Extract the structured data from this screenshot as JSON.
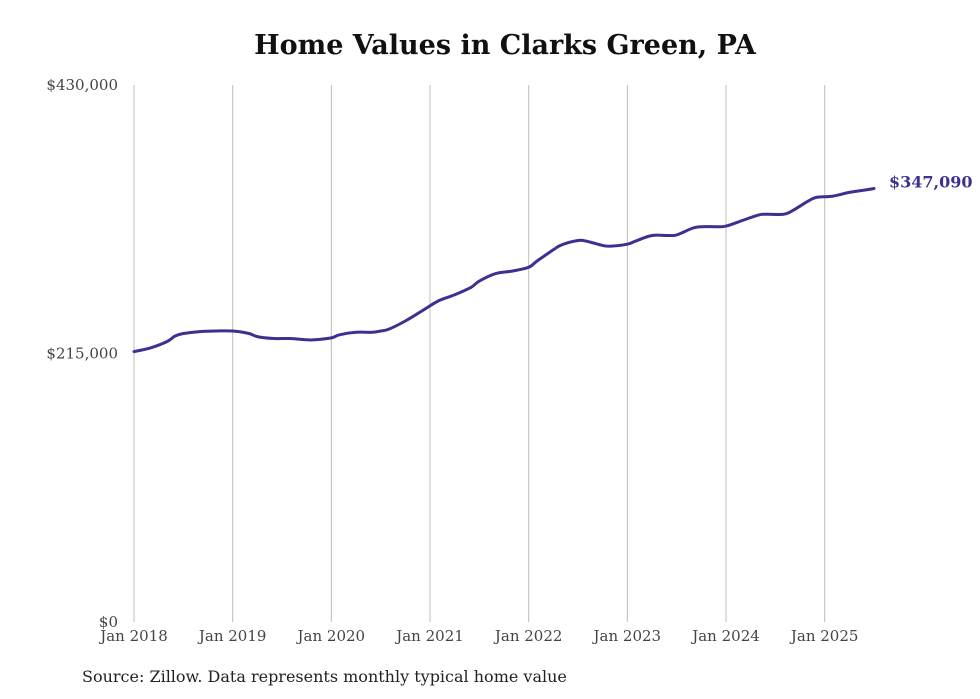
{
  "chart_data": {
    "type": "line",
    "title": "Home Values in Clarks Green, PA",
    "source": "Source: Zillow. Data represents monthly typical home value",
    "ylim": [
      0,
      430000
    ],
    "y_ticks": [
      "$0",
      "$215,000",
      "$430,000"
    ],
    "y_tick_values": [
      0,
      215000,
      430000
    ],
    "x_ticks": [
      "Jan 2018",
      "Jan 2019",
      "Jan 2020",
      "Jan 2021",
      "Jan 2022",
      "Jan 2023",
      "Jan 2024",
      "Jan 2025"
    ],
    "x_range": [
      "2018-01",
      "2025-07"
    ],
    "grid": "vertical",
    "series_color": "#3b3190",
    "end_label": "$347,090",
    "series": [
      {
        "values": [
          [
            "2018-01",
            216500
          ],
          [
            "2018-03",
            219500
          ],
          [
            "2018-05",
            224500
          ],
          [
            "2018-06",
            229000
          ],
          [
            "2018-07",
            231000
          ],
          [
            "2018-09",
            232500
          ],
          [
            "2018-11",
            233000
          ],
          [
            "2019-01",
            233000
          ],
          [
            "2019-03",
            231000
          ],
          [
            "2019-04",
            228500
          ],
          [
            "2019-06",
            227000
          ],
          [
            "2019-08",
            227000
          ],
          [
            "2019-10",
            226000
          ],
          [
            "2019-11",
            226000
          ],
          [
            "2020-01",
            227500
          ],
          [
            "2020-02",
            230000
          ],
          [
            "2020-04",
            232000
          ],
          [
            "2020-06",
            232000
          ],
          [
            "2020-07",
            233000
          ],
          [
            "2020-08",
            234500
          ],
          [
            "2020-10",
            241000
          ],
          [
            "2020-12",
            249000
          ],
          [
            "2021-02",
            257000
          ],
          [
            "2021-04",
            262000
          ],
          [
            "2021-06",
            268000
          ],
          [
            "2021-07",
            273000
          ],
          [
            "2021-09",
            279000
          ],
          [
            "2021-11",
            281000
          ],
          [
            "2022-01",
            284000
          ],
          [
            "2022-02",
            289000
          ],
          [
            "2022-04",
            298000
          ],
          [
            "2022-05",
            302000
          ],
          [
            "2022-07",
            305500
          ],
          [
            "2022-08",
            305000
          ],
          [
            "2022-10",
            301500
          ],
          [
            "2022-11",
            301000
          ],
          [
            "2023-01",
            302500
          ],
          [
            "2023-02",
            305000
          ],
          [
            "2023-04",
            309500
          ],
          [
            "2023-06",
            309500
          ],
          [
            "2023-07",
            310000
          ],
          [
            "2023-09",
            315500
          ],
          [
            "2023-10",
            316500
          ],
          [
            "2023-12",
            316500
          ],
          [
            "2024-01",
            317000
          ],
          [
            "2024-03",
            321500
          ],
          [
            "2024-05",
            326000
          ],
          [
            "2024-06",
            326500
          ],
          [
            "2024-08",
            326500
          ],
          [
            "2024-09",
            329000
          ],
          [
            "2024-11",
            337000
          ],
          [
            "2024-12",
            340000
          ],
          [
            "2025-02",
            341000
          ],
          [
            "2025-04",
            344000
          ],
          [
            "2025-06",
            346000
          ],
          [
            "2025-07",
            347090
          ]
        ]
      }
    ]
  }
}
